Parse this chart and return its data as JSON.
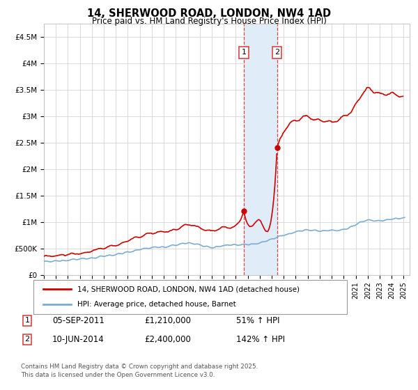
{
  "title": "14, SHERWOOD ROAD, LONDON, NW4 1AD",
  "subtitle": "Price paid vs. HM Land Registry's House Price Index (HPI)",
  "footer": "Contains HM Land Registry data © Crown copyright and database right 2025.\nThis data is licensed under the Open Government Licence v3.0.",
  "legend_line1": "14, SHERWOOD ROAD, LONDON, NW4 1AD (detached house)",
  "legend_line2": "HPI: Average price, detached house, Barnet",
  "transaction1_date": "05-SEP-2011",
  "transaction1_price": "£1,210,000",
  "transaction1_hpi": "51% ↑ HPI",
  "transaction2_date": "10-JUN-2014",
  "transaction2_price": "£2,400,000",
  "transaction2_hpi": "142% ↑ HPI",
  "ylim": [
    0,
    4750000
  ],
  "yticks": [
    0,
    500000,
    1000000,
    1500000,
    2000000,
    2500000,
    3000000,
    3500000,
    4000000,
    4500000
  ],
  "ytick_labels": [
    "£0",
    "£500K",
    "£1M",
    "£1.5M",
    "£2M",
    "£2.5M",
    "£3M",
    "£3.5M",
    "£4M",
    "£4.5M"
  ],
  "house_color": "#cc0000",
  "hpi_color": "#7aadd4",
  "vline_color": "#dd4444",
  "shade_color": "#e0ecf8",
  "background_color": "#ffffff",
  "transaction1_x": 2011.67,
  "transaction2_x": 2014.44,
  "transaction1_y": 1210000,
  "transaction2_y": 2400000,
  "xlim_left": 1995.0,
  "xlim_right": 2025.5
}
